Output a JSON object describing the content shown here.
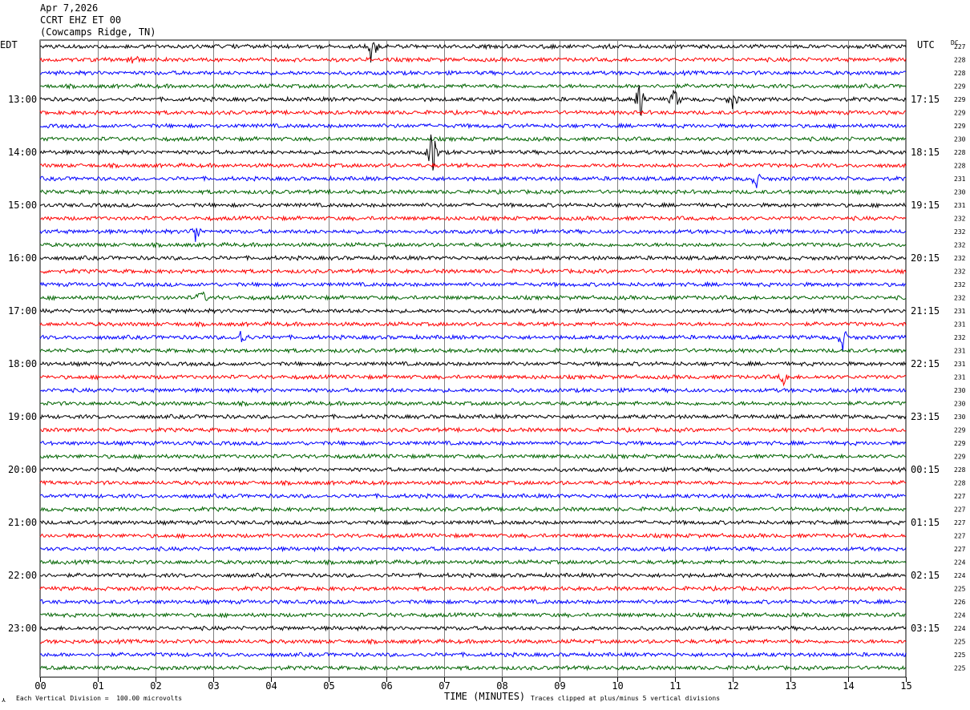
{
  "header": {
    "date": "Apr 7,2026",
    "station": "CCRT EHZ ET 00",
    "location": "(Cowcamps Ridge, TN)"
  },
  "left_zone": "EDT",
  "right_zone": "UTC",
  "dc_label": "DC",
  "footer": {
    "scale_note": "Each Vertical Division =  100.00 microvolts",
    "xlabel": "TIME (MINUTES)",
    "clip_note": "Traces clipped at plus/minus 5 vertical divisions"
  },
  "chart_data": {
    "type": "line",
    "title": "Apr 7,2026 CCRT EHZ ET 00 (Cowcamps Ridge, TN)",
    "xlabel": "TIME (MINUTES)",
    "x_ticks": [
      "00",
      "01",
      "02",
      "03",
      "04",
      "05",
      "06",
      "07",
      "08",
      "09",
      "10",
      "11",
      "12",
      "13",
      "14",
      "15"
    ],
    "xlim": [
      0,
      15
    ],
    "grid": true,
    "trace_colors": [
      "#000000",
      "#ff0000",
      "#0000ff",
      "#006400"
    ],
    "edt_hour_labels": [
      "13:00",
      "14:00",
      "15:00",
      "16:00",
      "17:00",
      "18:00",
      "19:00",
      "20:00",
      "21:00",
      "22:00",
      "23:00"
    ],
    "utc_labels": [
      "17:15",
      "18:15",
      "19:15",
      "20:15",
      "21:15",
      "22:15",
      "23:15",
      "00:15",
      "01:15",
      "02:15",
      "03:15"
    ],
    "dc_offsets": [
      227,
      228,
      228,
      229,
      229,
      229,
      229,
      230,
      228,
      228,
      231,
      230,
      231,
      232,
      232,
      232,
      232,
      232,
      232,
      232,
      231,
      231,
      232,
      231,
      231,
      231,
      230,
      230,
      230,
      229,
      229,
      229,
      228,
      228,
      227,
      227,
      227,
      227,
      227,
      224,
      224,
      225,
      226,
      224,
      224,
      225,
      225,
      225
    ],
    "events": [
      {
        "trace": 0,
        "minute": 5.75,
        "amplitude": 4.0
      },
      {
        "trace": 1,
        "minute": 1.6,
        "amplitude": 1.2
      },
      {
        "trace": 4,
        "minute": 10.4,
        "amplitude": 3.5
      },
      {
        "trace": 4,
        "minute": 11.0,
        "amplitude": 2.0
      },
      {
        "trace": 4,
        "minute": 12.0,
        "amplitude": 1.5
      },
      {
        "trace": 8,
        "minute": 6.8,
        "amplitude": 4.5
      },
      {
        "trace": 10,
        "minute": 12.4,
        "amplitude": 1.5
      },
      {
        "trace": 14,
        "minute": 2.7,
        "amplitude": 1.8
      },
      {
        "trace": 19,
        "minute": 2.8,
        "amplitude": 1.2
      },
      {
        "trace": 22,
        "minute": 3.5,
        "amplitude": 1.6
      },
      {
        "trace": 22,
        "minute": 13.9,
        "amplitude": 2.0
      },
      {
        "trace": 25,
        "minute": 12.9,
        "amplitude": 1.4
      }
    ]
  }
}
